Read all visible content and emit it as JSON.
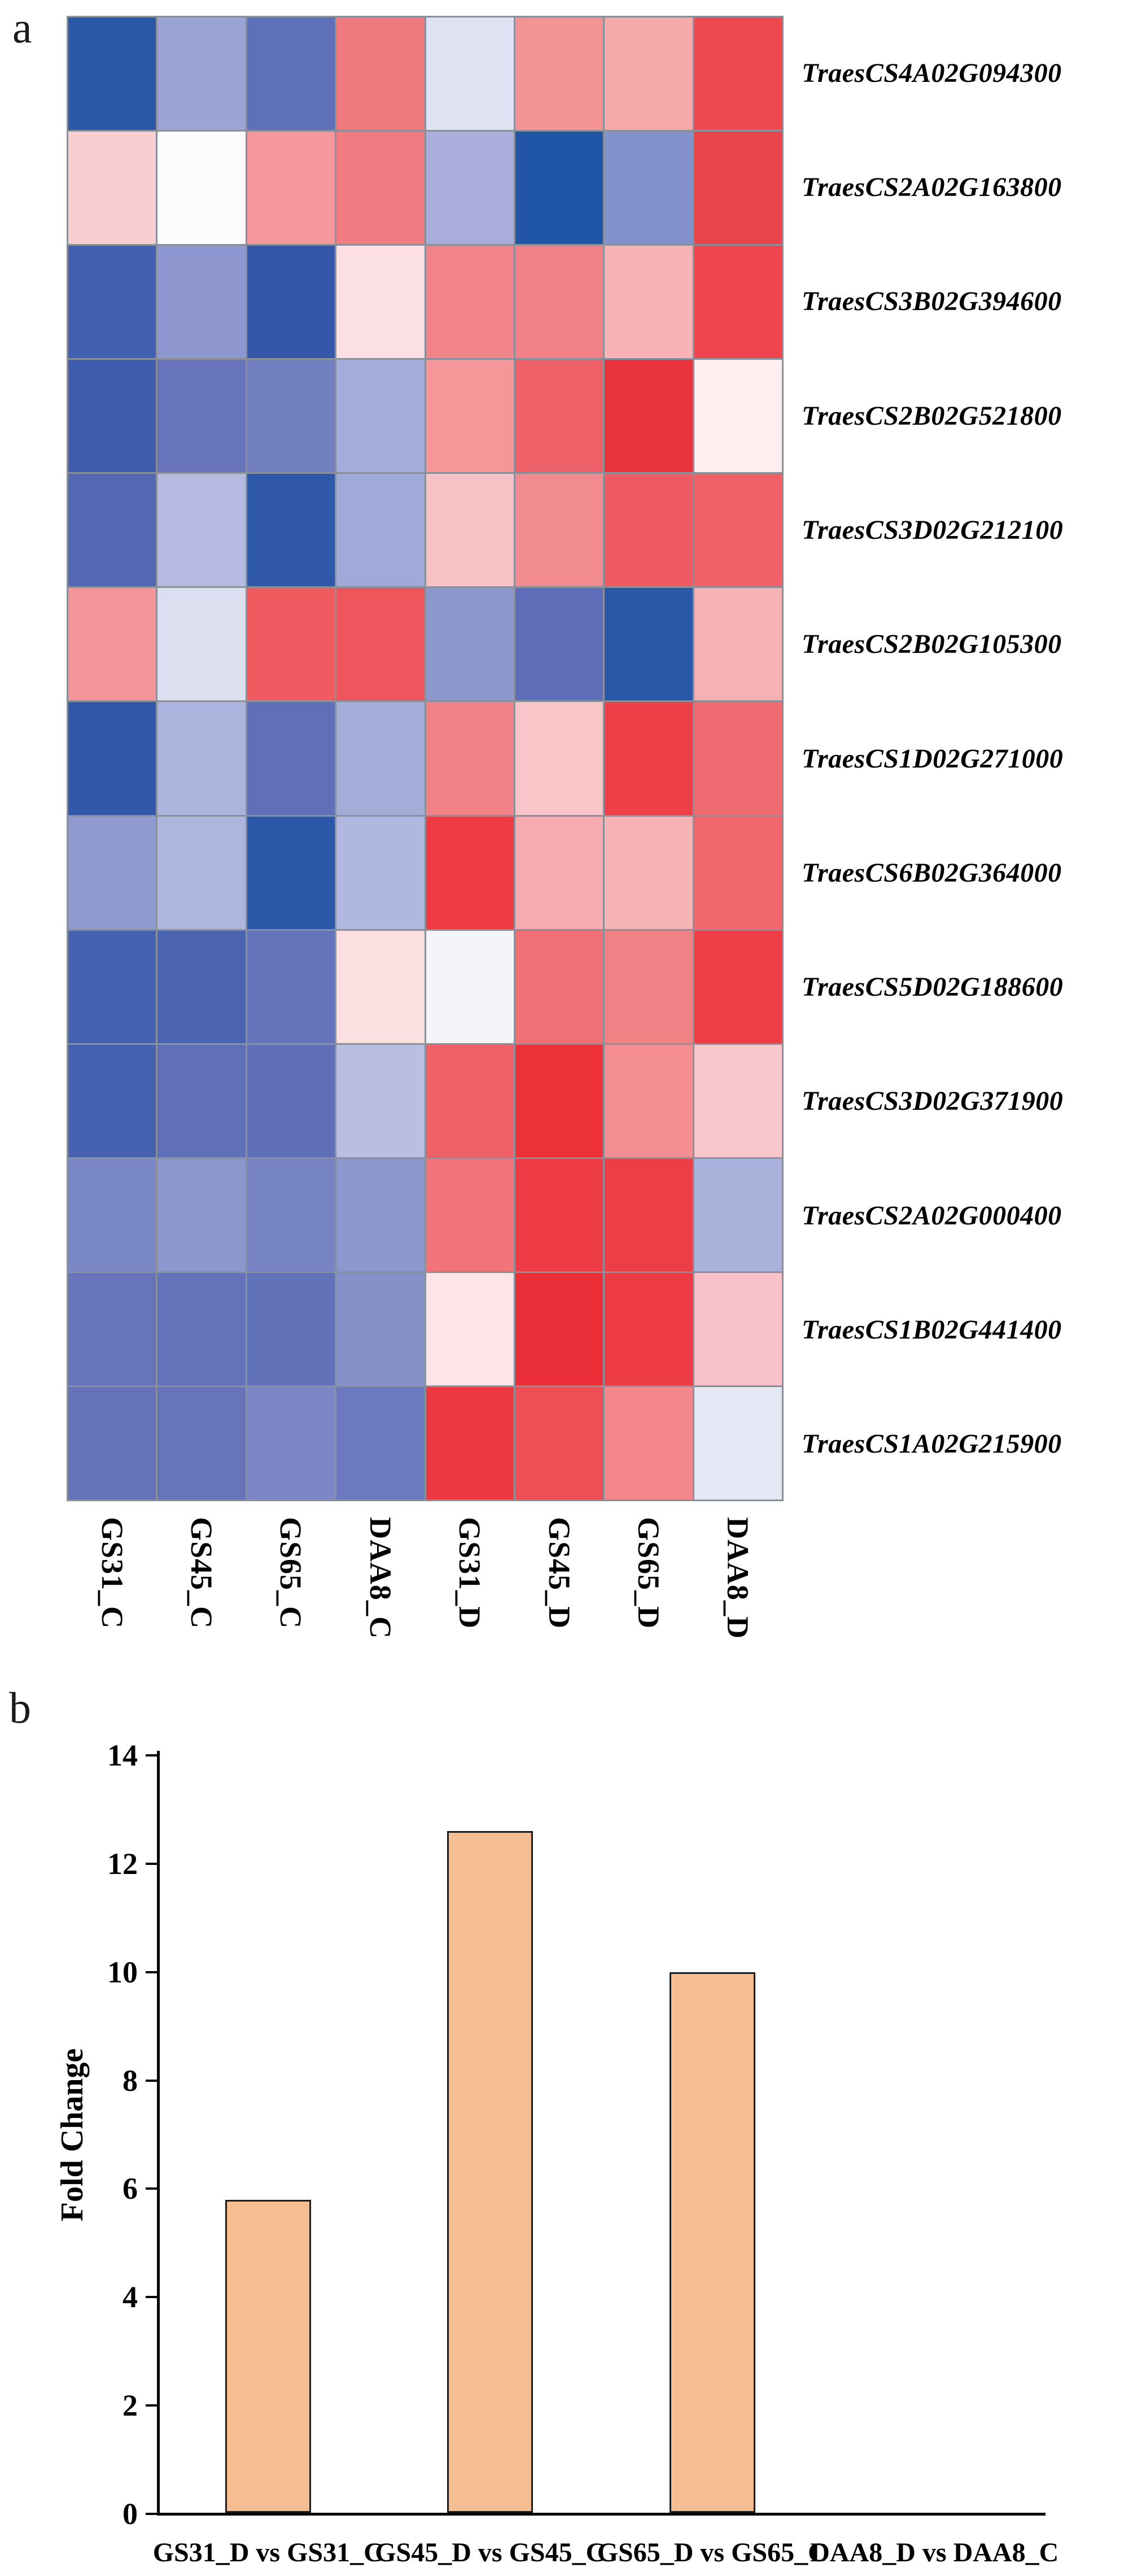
{
  "panel_a": {
    "letter": "a",
    "heatmap": {
      "genes": [
        "TraesCS4A02G094300",
        "TraesCS2A02G163800",
        "TraesCS3B02G394600",
        "TraesCS2B02G521800",
        "TraesCS3D02G212100",
        "TraesCS2B02G105300",
        "TraesCS1D02G271000",
        "TraesCS6B02G364000",
        "TraesCS5D02G188600",
        "TraesCS3D02G371900",
        "TraesCS2A02G000400",
        "TraesCS1B02G441400",
        "TraesCS1A02G215900"
      ],
      "samples": [
        "GS31_C",
        "GS45_C",
        "GS65_C",
        "DAA8_C",
        "GS31_D",
        "GS45_D",
        "GS65_D",
        "DAA8_D"
      ],
      "grid_color": "#8a909a",
      "cell_colors": [
        [
          "#2b57a8",
          "#9ba4d4",
          "#5e70b8",
          "#f0797e",
          "#dfe2f2",
          "#f49396",
          "#f5a9ab",
          "#ee4950"
        ],
        [
          "#f8ced1",
          "#fbfbfe",
          "#f5979c",
          "#f17b81",
          "#a9aedd",
          "#2156a7",
          "#8492cb",
          "#e9444d"
        ],
        [
          "#4260af",
          "#8e97d0",
          "#3557aa",
          "#fcdfe2",
          "#f18489",
          "#f08287",
          "#f7b3b5",
          "#ee454e"
        ],
        [
          "#3f5cad",
          "#6774bc",
          "#7280c2",
          "#a5acd9",
          "#f79698",
          "#ef6168",
          "#e9343d",
          "#fdeff0"
        ],
        [
          "#5568b3",
          "#b4bae0",
          "#3058a9",
          "#a0a9d7",
          "#f8c1c5",
          "#f28b8f",
          "#ee5b62",
          "#ef6067"
        ],
        [
          "#f4959a",
          "#dcdff0",
          "#ef5b61",
          "#ee565d",
          "#8c98cd",
          "#5d6db8",
          "#2b57a9",
          "#f6b1b5"
        ],
        [
          "#3158ab",
          "#acb3dc",
          "#5f6fb8",
          "#a4acd8",
          "#f18388",
          "#f9c5c9",
          "#ed4049",
          "#f06b71"
        ],
        [
          "#8f9ace",
          "#afb6de",
          "#2c58a9",
          "#b1b8df",
          "#ee3b44",
          "#f6acb0",
          "#f6b4b7",
          "#f1676d"
        ],
        [
          "#4661af",
          "#4b64b1",
          "#6374ba",
          "#fcdfe1",
          "#f3f5fb",
          "#f07076",
          "#f28186",
          "#ed3e48"
        ],
        [
          "#4661af",
          "#5f6fb8",
          "#5e6eb7",
          "#b9bfe3",
          "#f06067",
          "#ec3139",
          "#f48e92",
          "#f8c7cb"
        ],
        [
          "#7a87c5",
          "#8c97ce",
          "#7684c3",
          "#8c97ce",
          "#f1747a",
          "#ed3c45",
          "#ed3d46",
          "#abb2dc"
        ],
        [
          "#6774ba",
          "#6473b9",
          "#6272b8",
          "#8591c9",
          "#fce4e7",
          "#ea2f38",
          "#ec3b44",
          "#f8c3c8"
        ],
        [
          "#6673b9",
          "#6774ba",
          "#7b87c4",
          "#6c79be",
          "#ed3941",
          "#ee4e56",
          "#f3878c",
          "#e4e7f4"
        ]
      ]
    }
  },
  "panel_b": {
    "letter": "b",
    "ylabel": "Fold Change",
    "categories": [
      "GS31_D vs GS31_C",
      "GS45_D vs GS45_C",
      "GS65_D vs GS65_C",
      "DAA8_D vs DAA8_C"
    ],
    "values": [
      5.8,
      12.6,
      10.0,
      0
    ],
    "ytick_labels": [
      "0",
      "2",
      "4",
      "6",
      "8",
      "10",
      "12",
      "14"
    ],
    "bar_fill": "#f5bd92",
    "bar_border": "#1c1c1c",
    "axis_color": "#000000"
  },
  "chart_data": [
    {
      "type": "heatmap",
      "title": "",
      "rows": [
        "TraesCS4A02G094300",
        "TraesCS2A02G163800",
        "TraesCS3B02G394600",
        "TraesCS2B02G521800",
        "TraesCS3D02G212100",
        "TraesCS2B02G105300",
        "TraesCS1D02G271000",
        "TraesCS6B02G364000",
        "TraesCS5D02G188600",
        "TraesCS3D02G371900",
        "TraesCS2A02G000400",
        "TraesCS1B02G441400",
        "TraesCS1A02G215900"
      ],
      "columns": [
        "GS31_C",
        "GS45_C",
        "GS65_C",
        "DAA8_C",
        "GS31_D",
        "GS45_D",
        "GS65_D",
        "DAA8_D"
      ],
      "colormap": "blue-white-red (low to high expression, no colorbar shown)",
      "cell_colors_hex": [
        [
          "#2b57a8",
          "#9ba4d4",
          "#5e70b8",
          "#f0797e",
          "#dfe2f2",
          "#f49396",
          "#f5a9ab",
          "#ee4950"
        ],
        [
          "#f8ced1",
          "#fbfbfe",
          "#f5979c",
          "#f17b81",
          "#a9aedd",
          "#2156a7",
          "#8492cb",
          "#e9444d"
        ],
        [
          "#4260af",
          "#8e97d0",
          "#3557aa",
          "#fcdfe2",
          "#f18489",
          "#f08287",
          "#f7b3b5",
          "#ee454e"
        ],
        [
          "#3f5cad",
          "#6774bc",
          "#7280c2",
          "#a5acd9",
          "#f79698",
          "#ef6168",
          "#e9343d",
          "#fdeff0"
        ],
        [
          "#5568b3",
          "#b4bae0",
          "#3058a9",
          "#a0a9d7",
          "#f8c1c5",
          "#f28b8f",
          "#ee5b62",
          "#ef6067"
        ],
        [
          "#f4959a",
          "#dcdff0",
          "#ef5b61",
          "#ee565d",
          "#8c98cd",
          "#5d6db8",
          "#2b57a9",
          "#f6b1b5"
        ],
        [
          "#3158ab",
          "#acb3dc",
          "#5f6fb8",
          "#a4acd8",
          "#f18388",
          "#f9c5c9",
          "#ed4049",
          "#f06b71"
        ],
        [
          "#8f9ace",
          "#afb6de",
          "#2c58a9",
          "#b1b8df",
          "#ee3b44",
          "#f6acb0",
          "#f6b4b7",
          "#f1676d"
        ],
        [
          "#4661af",
          "#4b64b1",
          "#6374ba",
          "#fcdfe1",
          "#f3f5fb",
          "#f07076",
          "#f28186",
          "#ed3e48"
        ],
        [
          "#4661af",
          "#5f6fb8",
          "#5e6eb7",
          "#b9bfe3",
          "#f06067",
          "#ec3139",
          "#f48e92",
          "#f8c7cb"
        ],
        [
          "#7a87c5",
          "#8c97ce",
          "#7684c3",
          "#8c97ce",
          "#f1747a",
          "#ed3c45",
          "#ed3d46",
          "#abb2dc"
        ],
        [
          "#6774ba",
          "#6473b9",
          "#6272b8",
          "#8591c9",
          "#fce4e7",
          "#ea2f38",
          "#ec3b44",
          "#f8c3c8"
        ],
        [
          "#6673b9",
          "#6774ba",
          "#7b87c4",
          "#6c79be",
          "#ed3941",
          "#ee4e56",
          "#f3878c",
          "#e4e7f4"
        ]
      ]
    },
    {
      "type": "bar",
      "categories": [
        "GS31_D vs GS31_C",
        "GS45_D vs GS45_C",
        "GS65_D vs GS65_C",
        "DAA8_D vs DAA8_C"
      ],
      "values": [
        5.8,
        12.6,
        10.0,
        0
      ],
      "title": "",
      "xlabel": "",
      "ylabel": "Fold Change",
      "ylim": [
        0,
        14
      ],
      "yticks": [
        0,
        2,
        4,
        6,
        8,
        10,
        12,
        14
      ],
      "grid": false,
      "legend": "none",
      "bar_color": "#f5bd92"
    }
  ]
}
